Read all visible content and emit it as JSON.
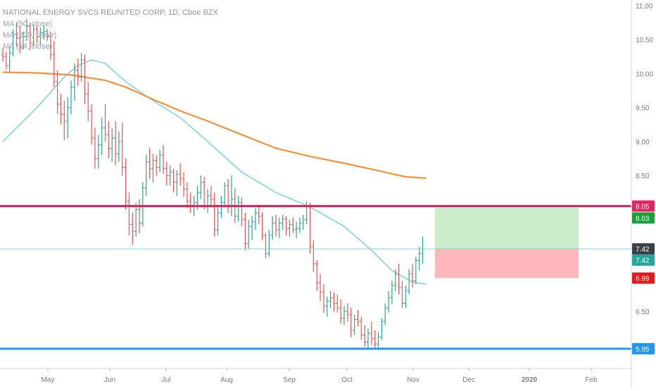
{
  "header": {
    "title": "NATIONAL ENERGY SVCS REUNITED CORP, 1D, Cboe BZX",
    "ma1": "MA (50, close)",
    "ma2": "MA (200, close)",
    "ma3": "MA (14, close)"
  },
  "colors": {
    "bull": "#26a69a",
    "bear": "#ef5350",
    "ma_fast": "#7fd3e6",
    "ma_slow": "#f6913a",
    "resistance": "#e0245e",
    "support": "#2196f3",
    "target_zone": "#c8ebc6",
    "stop_zone": "#ffb3b8"
  },
  "chart_data": {
    "type": "candlestick",
    "title": "NATIONAL ENERGY SVCS REUNITED CORP, 1D, Cboe BZX",
    "x_ticks": [
      "May",
      "Jun",
      "Jul",
      "Aug",
      "Sep",
      "Oct",
      "Nov",
      "Dec",
      "2020",
      "Feb"
    ],
    "y_ticks": [
      "11.00",
      "10.50",
      "10.00",
      "9.50",
      "9.00",
      "8.50",
      "6.50"
    ],
    "ylim": [
      5.7,
      11.05
    ],
    "grid": false,
    "series": [
      {
        "name": "price",
        "type": "ohlc_daily",
        "ohlc": [
          [
            10.28,
            10.38,
            10.18,
            10.25
          ],
          [
            10.25,
            10.32,
            10.05,
            10.12
          ],
          [
            10.12,
            10.4,
            10.02,
            10.3
          ],
          [
            10.3,
            10.65,
            10.25,
            10.58
          ],
          [
            10.58,
            10.75,
            10.4,
            10.52
          ],
          [
            10.52,
            10.7,
            10.3,
            10.4
          ],
          [
            10.4,
            10.62,
            10.35,
            10.55
          ],
          [
            10.55,
            10.8,
            10.48,
            10.7
          ],
          [
            10.7,
            10.75,
            10.35,
            10.45
          ],
          [
            10.45,
            10.72,
            10.4,
            10.65
          ],
          [
            10.65,
            10.7,
            10.45,
            10.55
          ],
          [
            10.55,
            10.68,
            10.42,
            10.6
          ],
          [
            10.6,
            10.7,
            10.5,
            10.62
          ],
          [
            10.62,
            10.66,
            10.48,
            10.55
          ],
          [
            10.55,
            10.62,
            10.2,
            10.28
          ],
          [
            10.28,
            10.48,
            9.8,
            9.88
          ],
          [
            9.88,
            10.05,
            9.4,
            9.55
          ],
          [
            9.55,
            9.7,
            9.25,
            9.4
          ],
          [
            9.4,
            9.6,
            9.02,
            9.3
          ],
          [
            9.3,
            9.65,
            9.05,
            9.5
          ],
          [
            9.5,
            9.9,
            9.4,
            9.8
          ],
          [
            9.8,
            10.15,
            9.6,
            10.05
          ],
          [
            10.05,
            10.22,
            9.82,
            9.95
          ],
          [
            9.95,
            10.3,
            9.88,
            10.2
          ],
          [
            10.2,
            10.28,
            9.55,
            9.7
          ],
          [
            9.7,
            9.88,
            9.3,
            9.45
          ],
          [
            9.45,
            9.55,
            8.95,
            9.05
          ],
          [
            9.05,
            9.2,
            8.6,
            8.75
          ],
          [
            8.75,
            9.1,
            8.6,
            8.95
          ],
          [
            8.95,
            9.35,
            8.8,
            9.2
          ],
          [
            9.2,
            9.55,
            9.0,
            9.1
          ],
          [
            9.1,
            9.3,
            8.75,
            8.9
          ],
          [
            8.9,
            9.2,
            8.7,
            9.05
          ],
          [
            9.05,
            9.3,
            8.65,
            8.82
          ],
          [
            8.82,
            9.15,
            8.7,
            9.0
          ],
          [
            9.0,
            9.28,
            8.5,
            8.62
          ],
          [
            8.62,
            8.75,
            8.0,
            8.12
          ],
          [
            8.12,
            8.25,
            7.62,
            7.78
          ],
          [
            7.78,
            7.95,
            7.48,
            7.68
          ],
          [
            7.68,
            8.1,
            7.6,
            8.0
          ],
          [
            8.0,
            8.15,
            7.65,
            7.8
          ],
          [
            7.8,
            8.4,
            7.75,
            8.32
          ],
          [
            8.32,
            8.8,
            8.2,
            8.7
          ],
          [
            8.7,
            8.9,
            8.45,
            8.6
          ],
          [
            8.6,
            8.82,
            8.4,
            8.72
          ],
          [
            8.72,
            8.8,
            8.5,
            8.62
          ],
          [
            8.62,
            8.88,
            8.55,
            8.8
          ],
          [
            8.8,
            8.95,
            8.52,
            8.6
          ],
          [
            8.6,
            8.7,
            8.35,
            8.5
          ],
          [
            8.5,
            8.65,
            8.35,
            8.55
          ],
          [
            8.55,
            8.6,
            8.25,
            8.4
          ],
          [
            8.4,
            8.58,
            8.2,
            8.52
          ],
          [
            8.52,
            8.68,
            8.35,
            8.45
          ],
          [
            8.45,
            8.55,
            8.18,
            8.3
          ],
          [
            8.3,
            8.4,
            8.02,
            8.12
          ],
          [
            8.12,
            8.25,
            7.95,
            8.05
          ],
          [
            8.05,
            8.2,
            7.9,
            8.1
          ],
          [
            8.1,
            8.35,
            8.0,
            8.25
          ],
          [
            8.25,
            8.5,
            8.15,
            8.4
          ],
          [
            8.4,
            8.48,
            8.0,
            8.05
          ],
          [
            8.05,
            8.3,
            7.95,
            8.2
          ],
          [
            8.2,
            8.35,
            8.05,
            8.15
          ],
          [
            8.15,
            8.25,
            7.6,
            7.7
          ],
          [
            7.7,
            8.05,
            7.62,
            7.95
          ],
          [
            7.95,
            8.2,
            7.88,
            8.1
          ],
          [
            8.1,
            8.4,
            8.05,
            8.35
          ],
          [
            8.35,
            8.45,
            7.95,
            8.05
          ],
          [
            8.05,
            8.5,
            7.9,
            8.15
          ],
          [
            8.15,
            8.32,
            7.8,
            7.9
          ],
          [
            7.9,
            8.2,
            7.82,
            8.1
          ],
          [
            8.1,
            8.18,
            7.75,
            7.85
          ],
          [
            7.85,
            7.95,
            7.4,
            7.5
          ],
          [
            7.5,
            7.85,
            7.42,
            7.75
          ],
          [
            7.75,
            7.9,
            7.55,
            7.82
          ],
          [
            7.82,
            8.02,
            7.7,
            7.95
          ],
          [
            7.95,
            8.05,
            7.78,
            7.9
          ],
          [
            7.9,
            7.96,
            7.55,
            7.62
          ],
          [
            7.62,
            7.65,
            7.28,
            7.35
          ],
          [
            7.35,
            7.7,
            7.3,
            7.62
          ],
          [
            7.62,
            7.9,
            7.55,
            7.8
          ],
          [
            7.8,
            7.92,
            7.6,
            7.7
          ],
          [
            7.7,
            7.88,
            7.58,
            7.8
          ],
          [
            7.8,
            7.92,
            7.7,
            7.86
          ],
          [
            7.86,
            7.9,
            7.62,
            7.72
          ],
          [
            7.72,
            7.85,
            7.6,
            7.78
          ],
          [
            7.78,
            7.88,
            7.65,
            7.7
          ],
          [
            7.7,
            7.82,
            7.58,
            7.72
          ],
          [
            7.72,
            7.88,
            7.65,
            7.8
          ],
          [
            7.8,
            7.92,
            7.7,
            7.85
          ],
          [
            7.85,
            8.12,
            7.78,
            8.05
          ],
          [
            8.05,
            8.1,
            7.35,
            7.45
          ],
          [
            7.45,
            7.55,
            7.08,
            7.2
          ],
          [
            7.2,
            7.25,
            6.8,
            6.92
          ],
          [
            6.92,
            7.05,
            6.65,
            6.78
          ],
          [
            6.78,
            6.9,
            6.48,
            6.58
          ],
          [
            6.58,
            6.72,
            6.42,
            6.65
          ],
          [
            6.65,
            6.8,
            6.55,
            6.7
          ],
          [
            6.7,
            6.78,
            6.5,
            6.62
          ],
          [
            6.62,
            6.75,
            6.48,
            6.55
          ],
          [
            6.55,
            6.68,
            6.32,
            6.4
          ],
          [
            6.4,
            6.58,
            6.3,
            6.5
          ],
          [
            6.5,
            6.62,
            6.35,
            6.45
          ],
          [
            6.45,
            6.55,
            6.12,
            6.22
          ],
          [
            6.22,
            6.45,
            6.15,
            6.38
          ],
          [
            6.38,
            6.52,
            6.28,
            6.35
          ],
          [
            6.35,
            6.42,
            6.08,
            6.15
          ],
          [
            6.15,
            6.3,
            5.98,
            6.05
          ],
          [
            6.05,
            6.25,
            5.95,
            6.18
          ],
          [
            6.18,
            6.35,
            6.0,
            6.1
          ],
          [
            6.1,
            6.22,
            5.96,
            6.02
          ],
          [
            6.02,
            6.2,
            5.95,
            6.12
          ],
          [
            6.12,
            6.4,
            6.08,
            6.35
          ],
          [
            6.35,
            6.62,
            6.3,
            6.55
          ],
          [
            6.55,
            6.8,
            6.48,
            6.7
          ],
          [
            6.7,
            6.95,
            6.6,
            6.88
          ],
          [
            6.88,
            7.12,
            6.8,
            7.05
          ],
          [
            7.05,
            7.2,
            6.75,
            6.85
          ],
          [
            6.85,
            6.95,
            6.55,
            6.62
          ],
          [
            6.62,
            6.88,
            6.55,
            6.8
          ],
          [
            6.8,
            7.12,
            6.75,
            7.05
          ],
          [
            7.05,
            7.2,
            6.85,
            6.95
          ],
          [
            6.95,
            7.3,
            6.9,
            7.25
          ],
          [
            7.25,
            7.45,
            7.1,
            7.35
          ],
          [
            7.35,
            7.6,
            7.2,
            7.42
          ]
        ]
      },
      {
        "name": "MA (50, close)",
        "type": "line",
        "points": [
          [
            0,
            9.0
          ],
          [
            10,
            9.5
          ],
          [
            18,
            9.95
          ],
          [
            22,
            10.12
          ],
          [
            26,
            10.2
          ],
          [
            30,
            10.15
          ],
          [
            36,
            9.88
          ],
          [
            44,
            9.6
          ],
          [
            52,
            9.35
          ],
          [
            60,
            9.0
          ],
          [
            70,
            8.55
          ],
          [
            80,
            8.25
          ],
          [
            88,
            8.08
          ],
          [
            92,
            7.98
          ],
          [
            100,
            7.75
          ],
          [
            108,
            7.4
          ],
          [
            114,
            7.1
          ],
          [
            120,
            6.93
          ],
          [
            124,
            6.9
          ]
        ]
      },
      {
        "name": "MA (200, close)",
        "type": "line",
        "points": [
          [
            0,
            10.02
          ],
          [
            10,
            10.01
          ],
          [
            20,
            9.98
          ],
          [
            30,
            9.9
          ],
          [
            36,
            9.8
          ],
          [
            44,
            9.62
          ],
          [
            52,
            9.45
          ],
          [
            60,
            9.3
          ],
          [
            70,
            9.1
          ],
          [
            80,
            8.9
          ],
          [
            90,
            8.78
          ],
          [
            100,
            8.68
          ],
          [
            110,
            8.57
          ],
          [
            118,
            8.48
          ],
          [
            124,
            8.46
          ]
        ]
      }
    ],
    "levels": [
      {
        "name": "resistance",
        "price": 8.05,
        "label": "8.05"
      },
      {
        "name": "current",
        "price": 7.42,
        "label": "7.42"
      },
      {
        "name": "support",
        "price": 5.95,
        "label": "5.95"
      }
    ],
    "position": {
      "entry": 7.42,
      "entry_label": "7.42",
      "target": 8.03,
      "target_label": "8.03",
      "stop": 6.99,
      "stop_label": "6.99",
      "start_date": "Nov",
      "end_date": "Feb"
    }
  }
}
